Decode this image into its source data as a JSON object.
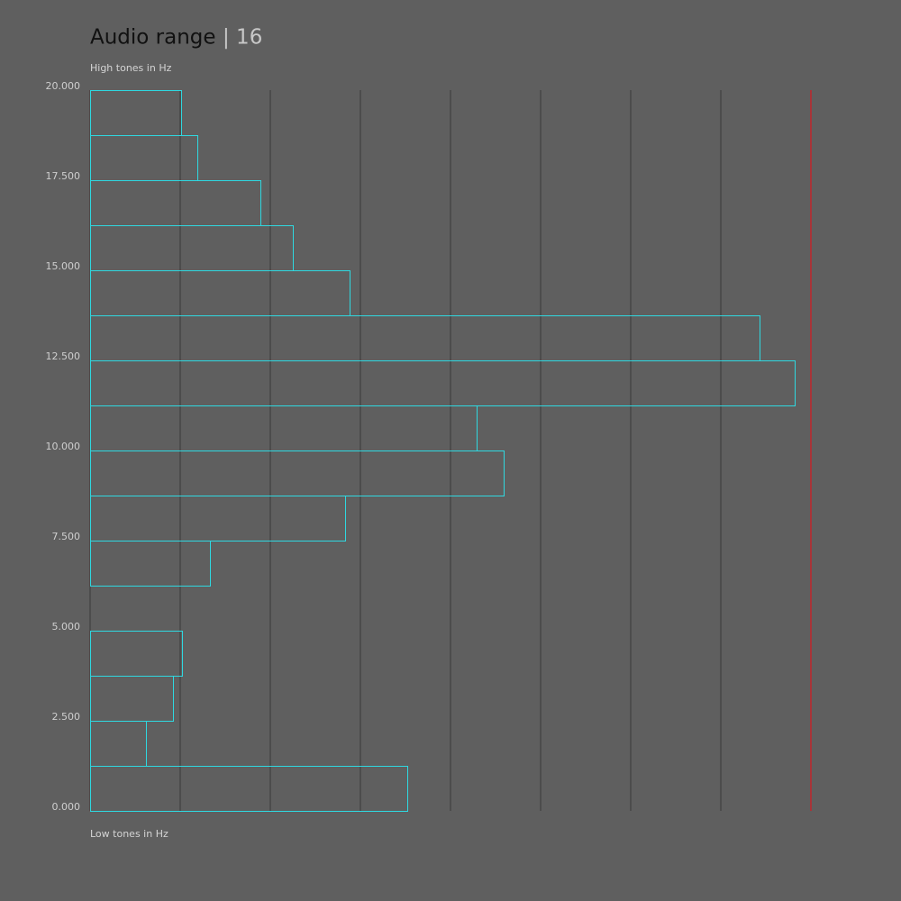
{
  "chart_data": {
    "type": "histogram",
    "orientation": "horizontal",
    "title": "Audio range",
    "title_count": "| 16",
    "y_label_top": "High tones in Hz",
    "y_label_bottom": "Low tones in Hz",
    "bins": [
      0,
      1250,
      2500,
      3750,
      5000,
      6250,
      7500,
      8750,
      10000,
      11250,
      12500,
      13750,
      15000,
      16250,
      17500,
      18750,
      20000
    ],
    "values": [
      3.52,
      0.62,
      0.92,
      1.02,
      0,
      1.33,
      2.83,
      4.59,
      4.29,
      7.82,
      7.43,
      2.88,
      2.25,
      1.89,
      1.19,
      1.01
    ],
    "color": "#2fd8e0",
    "ylim": [
      0,
      20000
    ],
    "yticks": [
      {
        "value": 0,
        "label": "0.000"
      },
      {
        "value": 2500,
        "label": "2.500"
      },
      {
        "value": 5000,
        "label": "5.000"
      },
      {
        "value": 7500,
        "label": "7.500"
      },
      {
        "value": 10000,
        "label": "10.000"
      },
      {
        "value": 12500,
        "label": "12.500"
      },
      {
        "value": 15000,
        "label": "15.000"
      },
      {
        "value": 17500,
        "label": "17.500"
      },
      {
        "value": 20000,
        "label": "20.000"
      }
    ],
    "xlim": [
      0,
      8
    ],
    "xticks": [
      0,
      1,
      2,
      3,
      4,
      5,
      6,
      7
    ],
    "grid": true,
    "limit_line": {
      "value": 8,
      "color": "#c0262b"
    }
  }
}
